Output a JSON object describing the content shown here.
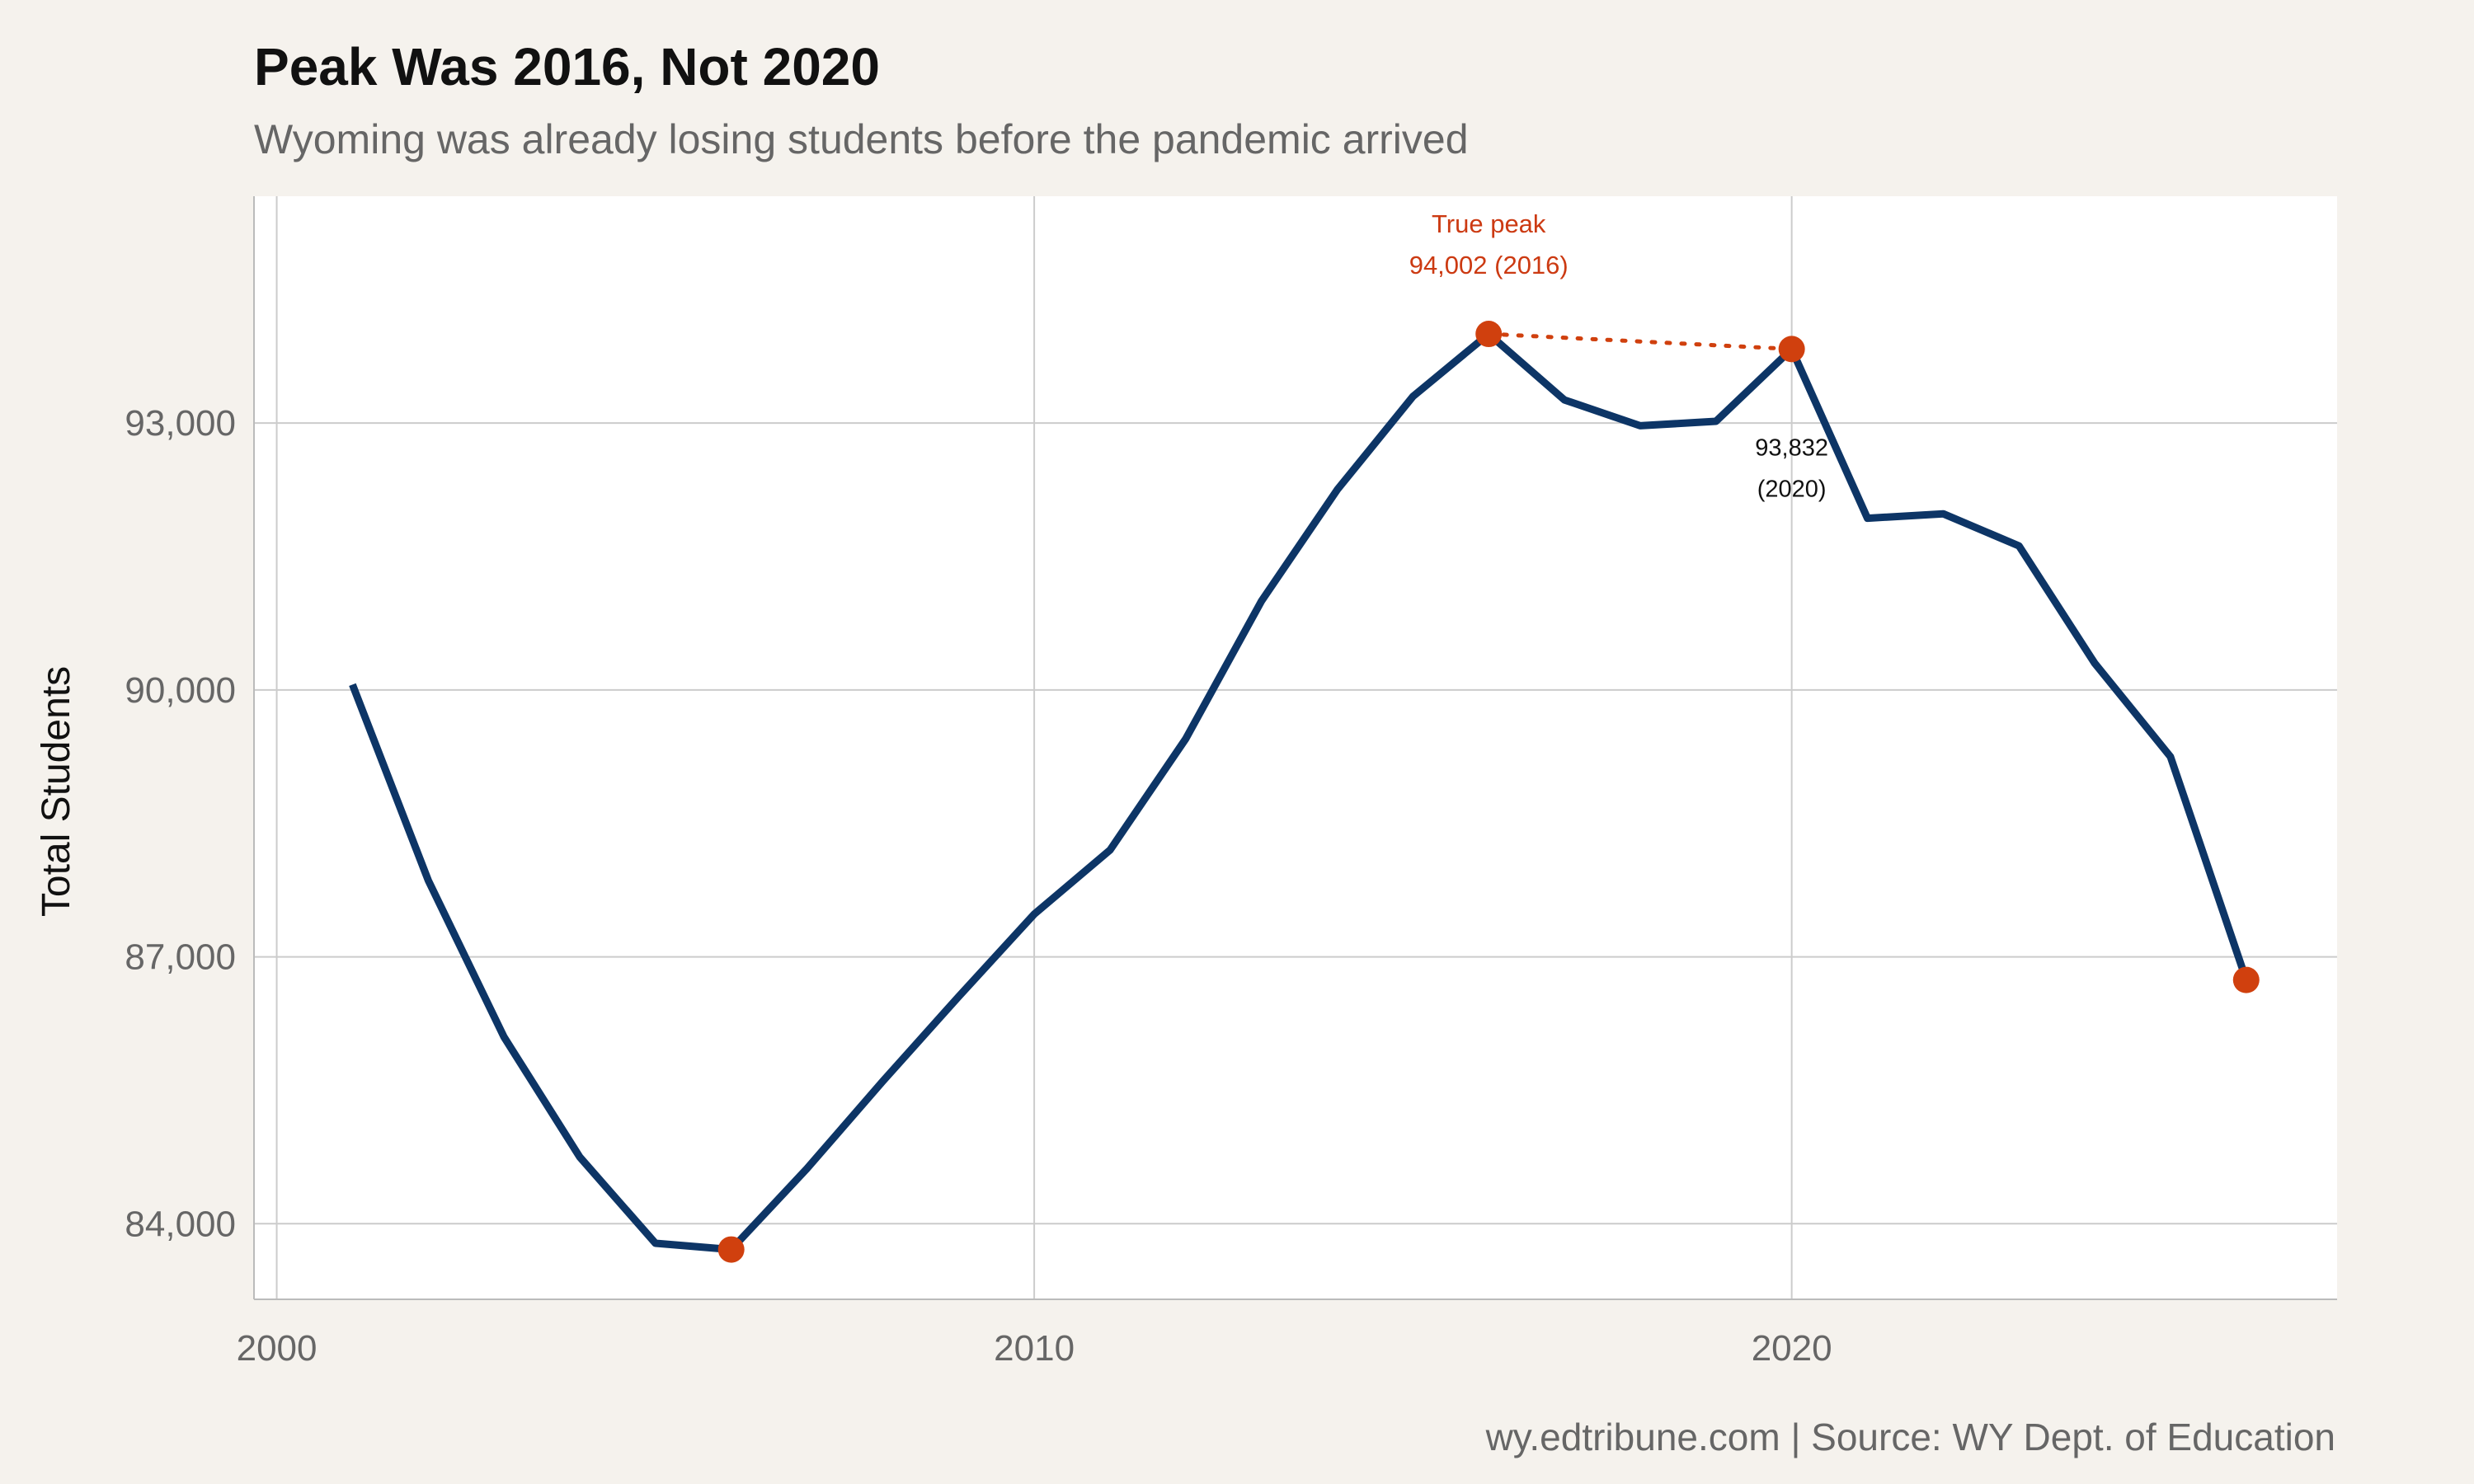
{
  "chart_data": {
    "type": "line",
    "title": "Peak Was 2016, Not 2020",
    "subtitle": "Wyoming was already losing students before the pandemic arrived",
    "xlabel": "",
    "ylabel": "Total Students",
    "caption": "wy.edtribune.com | Source: WY Dept. of Education",
    "xlim": [
      1999.7,
      2027.2
    ],
    "ylim": [
      83150,
      95550
    ],
    "x_ticks": [
      2000,
      2010,
      2020
    ],
    "x_tick_labels": [
      "2000",
      "2010",
      "2020"
    ],
    "y_ticks": [
      84000,
      87000,
      90000,
      93000
    ],
    "y_tick_labels": [
      "84,000",
      "87,000",
      "90,000",
      "93,000"
    ],
    "grid": true,
    "legend": "none",
    "series": [
      {
        "x": [
          2001,
          2002,
          2003,
          2004,
          2005,
          2006,
          2007,
          2008,
          2009,
          2010,
          2011,
          2012,
          2013,
          2014,
          2015,
          2016,
          2017,
          2018,
          2019,
          2020,
          2021,
          2022,
          2023,
          2024,
          2025,
          2026
        ],
        "values": [
          90060,
          87860,
          86100,
          84750,
          83780,
          83710,
          84620,
          85600,
          86550,
          87480,
          88200,
          89450,
          91000,
          92250,
          93300,
          94002,
          93260,
          92970,
          93020,
          93832,
          91930,
          91980,
          91620,
          90300,
          89250,
          86740
        ],
        "color": "#0d3566"
      }
    ],
    "highlight_points": [
      {
        "x": 2006,
        "y": 83710
      },
      {
        "x": 2016,
        "y": 94002
      },
      {
        "x": 2020,
        "y": 93832
      },
      {
        "x": 2026,
        "y": 86740
      }
    ],
    "connector": {
      "from": [
        2016,
        94002
      ],
      "to": [
        2020,
        93832
      ]
    },
    "annotations": [
      {
        "line1": "True peak",
        "line2": "94,002 (2016)",
        "x": 2016,
        "y": 94002,
        "color": "#cc3a12"
      },
      {
        "line1": "93,832",
        "line2": "(2020)",
        "x": 2020,
        "y": 93832,
        "color": "#111111"
      }
    ],
    "colors": {
      "line": "#0d3566",
      "highlight": "#d0400e",
      "annotation_red": "#cc3a12",
      "panel_bg": "#ffffff",
      "page_bg": "#f5f2ed",
      "grid": "#cccccc",
      "axis_text": "#666666"
    }
  }
}
